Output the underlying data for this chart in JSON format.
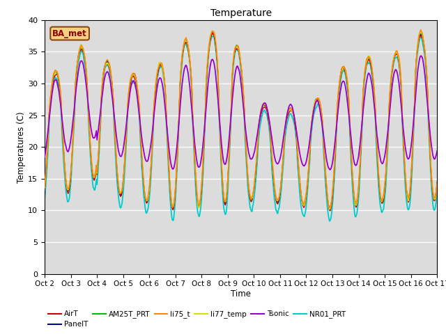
{
  "title": "Temperature",
  "xlabel": "Time",
  "ylabel": "Temperatures (C)",
  "ylim": [
    0,
    40
  ],
  "yticks": [
    0,
    5,
    10,
    15,
    20,
    25,
    30,
    35,
    40
  ],
  "annotation": "BA_met",
  "plot_bg_color": "#dcdcdc",
  "fig_bg_color": "#ffffff",
  "lines": {
    "AirT": {
      "color": "#cc0000",
      "lw": 0.9,
      "zorder": 4
    },
    "PanelT": {
      "color": "#000099",
      "lw": 0.9,
      "zorder": 3
    },
    "AM25T_PRT": {
      "color": "#00bb00",
      "lw": 0.9,
      "zorder": 3
    },
    "li75_t": {
      "color": "#ff8800",
      "lw": 1.1,
      "zorder": 5
    },
    "li77_temp": {
      "color": "#dddd00",
      "lw": 1.1,
      "zorder": 5
    },
    "Tsonic": {
      "color": "#9900cc",
      "lw": 1.3,
      "zorder": 6
    },
    "NR01_PRT": {
      "color": "#00cccc",
      "lw": 1.3,
      "zorder": 2
    }
  },
  "xticklabels": [
    "Oct 2",
    "Oct 3",
    "Oct 4",
    "Oct 5",
    "Oct 6",
    "Oct 7",
    "Oct 8",
    "Oct 9",
    "Oct 10",
    "Oct 11",
    "Oct 12",
    "Oct 13",
    "Oct 14",
    "Oct 15",
    "Oct 16",
    "Oct 17"
  ],
  "xtick_positions": [
    2,
    3,
    4,
    5,
    6,
    7,
    8,
    9,
    10,
    11,
    12,
    13,
    14,
    15,
    16,
    17
  ]
}
